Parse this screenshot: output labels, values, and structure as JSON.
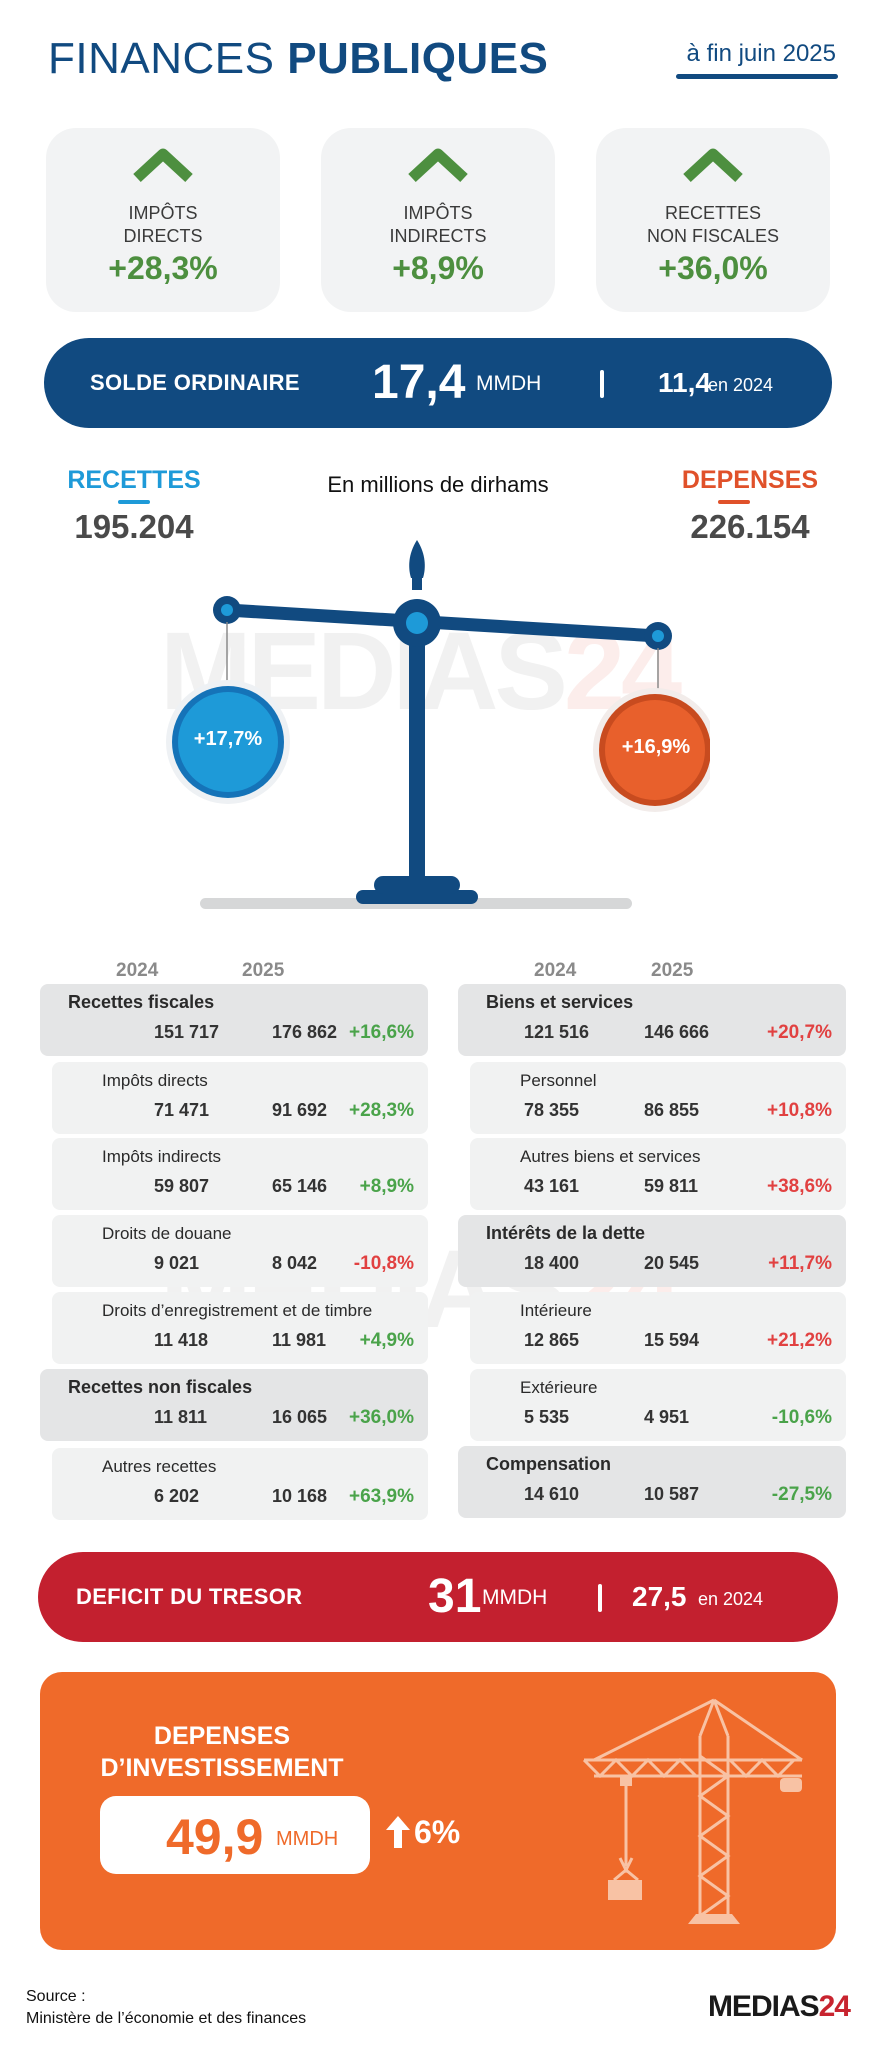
{
  "header": {
    "title_light": "FINANCES ",
    "title_bold": "PUBLIQUES",
    "date": "à fin juin 2025"
  },
  "cards": [
    {
      "label": "Impôts\ndirects",
      "value": "+28,3%"
    },
    {
      "label": "Impôts\nindirects",
      "value": "+8,9%"
    },
    {
      "label": "Recettes\nnon fiscales",
      "value": "+36,0%"
    }
  ],
  "solde": {
    "label": "SOLDE ORDINAIRE",
    "value": "17,4",
    "unit": "MMDH",
    "prev_value": "11,4",
    "prev_suffix": "en 2024",
    "color": "#114a80"
  },
  "balance": {
    "subtitle": "En millions de dirhams",
    "recettes_label": "RECETTES",
    "recettes_value": "195.204",
    "recettes_growth": "+17,7%",
    "recettes_color": "#1e9ad8",
    "depenses_label": "DEPENSES",
    "depenses_value": "226.154",
    "depenses_growth": "+16,9%",
    "depenses_color": "#e0512a"
  },
  "tables": {
    "years": [
      "2024",
      "2025"
    ],
    "recettes": [
      {
        "label": "Recettes fiscales",
        "v2024": "151 717",
        "v2025": "176 862",
        "pct": "+16,6%",
        "type": "main",
        "sign": "pos"
      },
      {
        "label": "Impôts directs",
        "v2024": "71 471",
        "v2025": "91 692",
        "pct": "+28,3%",
        "type": "sub",
        "sign": "pos"
      },
      {
        "label": "Impôts indirects",
        "v2024": "59 807",
        "v2025": "65 146",
        "pct": "+8,9%",
        "type": "sub",
        "sign": "pos"
      },
      {
        "label": "Droits de douane",
        "v2024": "9 021",
        "v2025": "8 042",
        "pct": "-10,8%",
        "type": "sub",
        "sign": "neg"
      },
      {
        "label": "Droits d’enregistrement et de timbre",
        "v2024": "11 418",
        "v2025": "11 981",
        "pct": "+4,9%",
        "type": "sub",
        "sign": "pos"
      },
      {
        "label": "Recettes non fiscales",
        "v2024": "11 811",
        "v2025": "16 065",
        "pct": "+36,0%",
        "type": "main",
        "sign": "pos"
      },
      {
        "label": "Autres recettes",
        "v2024": "6 202",
        "v2025": "10 168",
        "pct": "+63,9%",
        "type": "sub",
        "sign": "pos"
      }
    ],
    "depenses": [
      {
        "label": "Biens et services",
        "v2024": "121 516",
        "v2025": "146 666",
        "pct": "+20,7%",
        "type": "main",
        "sign": "neg"
      },
      {
        "label": "Personnel",
        "v2024": "78 355",
        "v2025": "86 855",
        "pct": "+10,8%",
        "type": "sub",
        "sign": "neg"
      },
      {
        "label": "Autres biens et services",
        "v2024": "43 161",
        "v2025": "59 811",
        "pct": "+38,6%",
        "type": "sub",
        "sign": "neg"
      },
      {
        "label": "Intérêts de la dette",
        "v2024": "18 400",
        "v2025": "20 545",
        "pct": "+11,7%",
        "type": "main",
        "sign": "neg"
      },
      {
        "label": "Intérieure",
        "v2024": "12 865",
        "v2025": "15 594",
        "pct": "+21,2%",
        "type": "sub",
        "sign": "neg"
      },
      {
        "label": "Extérieure",
        "v2024": "5 535",
        "v2025": "4 951",
        "pct": "-10,6%",
        "type": "sub",
        "sign": "pos"
      },
      {
        "label": "Compensation",
        "v2024": "14 610",
        "v2025": "10 587",
        "pct": "-27,5%",
        "type": "main",
        "sign": "pos"
      }
    ]
  },
  "deficit": {
    "label": "DEFICIT DU TRESOR",
    "value": "31",
    "unit": "MMDH",
    "prev_value": "27,5",
    "prev_suffix": "en 2024",
    "color": "#c3202f"
  },
  "investissement": {
    "label": "DEPENSES\nD’INVESTISSEMENT",
    "value": "49,9",
    "unit": "MMDH",
    "growth": "6%",
    "color": "#ef6a2a"
  },
  "watermark": {
    "text": "MEDIAS",
    "num": "24"
  },
  "footer": {
    "source": "Source :\nMinistère de l’économie et des finances",
    "logo_text": "MEDIAS",
    "logo_num": "24"
  }
}
